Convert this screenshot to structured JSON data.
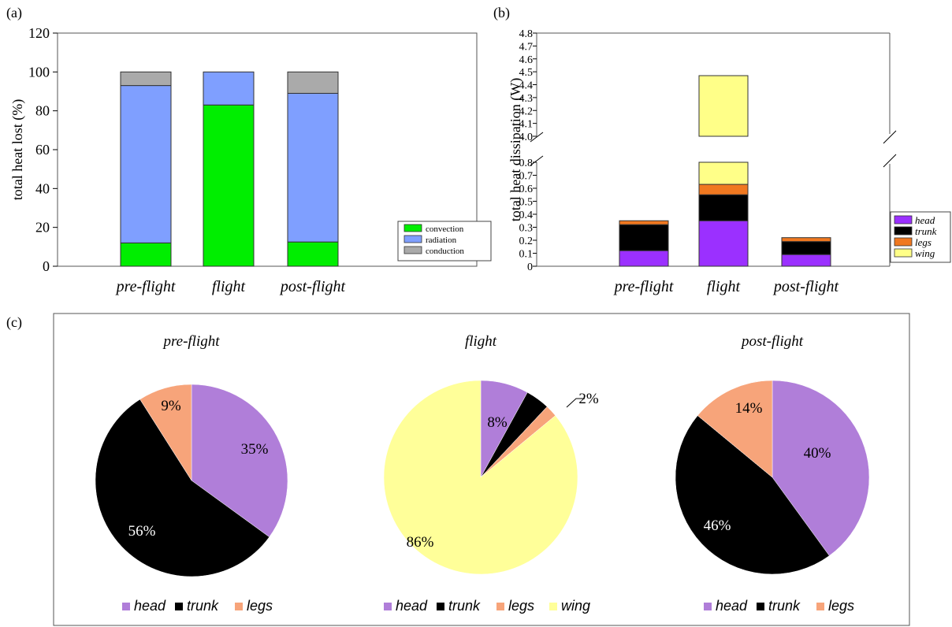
{
  "panels": {
    "a": "(a)",
    "b": "(b)",
    "c": "(c)"
  },
  "chart_data": [
    {
      "type": "bar",
      "stacked": true,
      "panel": "(a)",
      "categories": [
        "pre-flight",
        "flight",
        "post-flight"
      ],
      "ylabel": "total heat lost (%)",
      "ylim": [
        0,
        120
      ],
      "yticks": [
        "0",
        "20",
        "40",
        "60",
        "80",
        "100",
        "120"
      ],
      "legend_position": "bottom-right",
      "series": [
        {
          "name": "convection",
          "color": "#00ee00",
          "values": [
            12,
            83,
            12.5
          ]
        },
        {
          "name": "radiation",
          "color": "#7f9fff",
          "values": [
            81,
            17,
            76.5
          ]
        },
        {
          "name": "conduction",
          "color": "#aaaaaa",
          "values": [
            7,
            0,
            11
          ]
        }
      ]
    },
    {
      "type": "bar",
      "stacked": true,
      "panel": "(b)",
      "broken_axis": true,
      "categories": [
        "pre-flight",
        "flight",
        "post-flight"
      ],
      "ylabel": "total heat dissipation (W)",
      "ylim_lower": [
        0,
        0.8
      ],
      "ylim_upper": [
        4.0,
        4.8
      ],
      "yticks_lower": [
        "0",
        "0.1",
        "0.2",
        "0.3",
        "0.4",
        "0.5",
        "0.6",
        "0.7",
        "0.8"
      ],
      "yticks_upper": [
        "4.0",
        "4.1",
        "4.2",
        "4.3",
        "4.4",
        "4.5",
        "4.6",
        "4.7",
        "4.8"
      ],
      "legend_position": "right",
      "series": [
        {
          "name": "head",
          "color": "#9b30ff",
          "values": [
            0.12,
            0.35,
            0.09
          ]
        },
        {
          "name": "trunk",
          "color": "#000000",
          "values": [
            0.2,
            0.2,
            0.1
          ]
        },
        {
          "name": "legs",
          "color": "#f07820",
          "values": [
            0.03,
            0.08,
            0.03
          ]
        },
        {
          "name": "wing",
          "color": "#ffff88",
          "values": [
            0,
            3.84,
            0
          ]
        }
      ]
    },
    {
      "type": "pie",
      "panel": "(c)",
      "pies": [
        {
          "title": "pre-flight",
          "slices": [
            {
              "name": "head",
              "value": 35,
              "label": "35%",
              "color": "#b07ed9"
            },
            {
              "name": "trunk",
              "value": 56,
              "label": "56%",
              "color": "#000000"
            },
            {
              "name": "legs",
              "value": 9,
              "label": "9%",
              "color": "#f7a47a"
            }
          ],
          "legend": [
            "head",
            "trunk",
            "legs"
          ]
        },
        {
          "title": "flight",
          "slices": [
            {
              "name": "head",
              "value": 8,
              "label": "8%",
              "color": "#b07ed9"
            },
            {
              "name": "trunk",
              "value": 4,
              "label": "4%",
              "color": "#000000"
            },
            {
              "name": "legs",
              "value": 2,
              "label": "2%",
              "color": "#f7a47a"
            },
            {
              "name": "wing",
              "value": 86,
              "label": "86%",
              "color": "#ffff99"
            }
          ],
          "legend": [
            "head",
            "trunk",
            "legs",
            "wing"
          ]
        },
        {
          "title": "post-flight",
          "slices": [
            {
              "name": "head",
              "value": 40,
              "label": "40%",
              "color": "#b07ed9"
            },
            {
              "name": "trunk",
              "value": 46,
              "label": "46%",
              "color": "#000000"
            },
            {
              "name": "legs",
              "value": 14,
              "label": "14%",
              "color": "#f7a47a"
            }
          ],
          "legend": [
            "head",
            "trunk",
            "legs"
          ]
        }
      ]
    }
  ]
}
